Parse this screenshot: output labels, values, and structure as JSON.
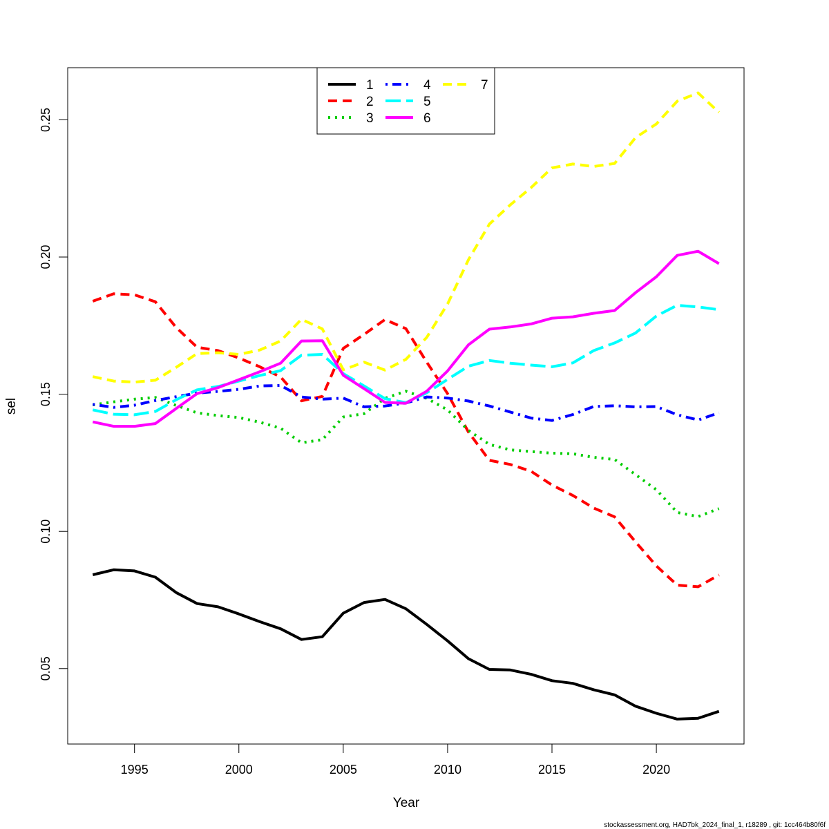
{
  "chart_data": {
    "type": "line",
    "title": "",
    "xlabel": "Year",
    "ylabel": "sel",
    "xlim": [
      1991.8,
      2024.2
    ],
    "ylim": [
      0.0225,
      0.269
    ],
    "xticks": [
      1995,
      2000,
      2005,
      2010,
      2015,
      2020
    ],
    "yticks": [
      0.05,
      0.1,
      0.15,
      0.2,
      0.25
    ],
    "ytick_labels": [
      "0.05",
      "0.10",
      "0.15",
      "0.20",
      "0.25"
    ],
    "grid": false,
    "legend_position": "top-center",
    "footer": "stockassessment.org, HAD7bk_2024_final_1, r18289 , git: 1cc464b80f6f",
    "x": [
      1993,
      1994,
      1995,
      1996,
      1997,
      1998,
      1999,
      2000,
      2001,
      2002,
      2003,
      2004,
      2005,
      2006,
      2007,
      2008,
      2009,
      2010,
      2011,
      2012,
      2013,
      2014,
      2015,
      2016,
      2017,
      2018,
      2019,
      2020,
      2021,
      2022,
      2023
    ],
    "series": [
      {
        "name": "1",
        "color": "#000000",
        "dash": "solid",
        "values": [
          0.0842,
          0.086,
          0.0856,
          0.0833,
          0.0777,
          0.0737,
          0.0725,
          0.0699,
          0.0671,
          0.0645,
          0.0606,
          0.0616,
          0.0702,
          0.0741,
          0.0752,
          0.0718,
          0.0661,
          0.0601,
          0.0536,
          0.0497,
          0.0495,
          0.0479,
          0.0456,
          0.0446,
          0.0423,
          0.0404,
          0.0363,
          0.0337,
          0.0316,
          0.0319,
          0.0344
        ]
      },
      {
        "name": "2",
        "color": "#ff0000",
        "dash": "dashed",
        "values": [
          0.1839,
          0.1866,
          0.1862,
          0.1837,
          0.1743,
          0.1671,
          0.1659,
          0.1632,
          0.16,
          0.1563,
          0.1476,
          0.1492,
          0.1667,
          0.1718,
          0.1772,
          0.1739,
          0.1617,
          0.1502,
          0.1362,
          0.1259,
          0.1244,
          0.1219,
          0.1169,
          0.1131,
          0.1085,
          0.1053,
          0.0962,
          0.0874,
          0.0804,
          0.0798,
          0.0841
        ]
      },
      {
        "name": "3",
        "color": "#00cd00",
        "dash": "dotted",
        "values": [
          0.1461,
          0.1472,
          0.1482,
          0.1488,
          0.1459,
          0.1432,
          0.1422,
          0.1415,
          0.1398,
          0.1376,
          0.1323,
          0.1334,
          0.1417,
          0.1429,
          0.1485,
          0.1511,
          0.1485,
          0.1443,
          0.1368,
          0.1317,
          0.1297,
          0.1291,
          0.1285,
          0.1283,
          0.127,
          0.1262,
          0.1207,
          0.1152,
          0.1069,
          0.1054,
          0.1083
        ]
      },
      {
        "name": "4",
        "color": "#0000ff",
        "dash": "dashdot",
        "values": [
          0.1463,
          0.1452,
          0.146,
          0.1477,
          0.1491,
          0.1504,
          0.151,
          0.1518,
          0.153,
          0.1532,
          0.149,
          0.1482,
          0.1486,
          0.1454,
          0.1457,
          0.1468,
          0.149,
          0.1486,
          0.1475,
          0.1457,
          0.1435,
          0.1413,
          0.1404,
          0.1426,
          0.1455,
          0.1458,
          0.1454,
          0.1455,
          0.1425,
          0.1406,
          0.1432
        ]
      },
      {
        "name": "5",
        "color": "#00ffff",
        "dash": "longdash",
        "values": [
          0.1443,
          0.1427,
          0.1425,
          0.1437,
          0.148,
          0.1516,
          0.1528,
          0.1548,
          0.1568,
          0.1586,
          0.1642,
          0.1645,
          0.1575,
          0.153,
          0.1484,
          0.1469,
          0.1505,
          0.1554,
          0.1602,
          0.1623,
          0.1613,
          0.1606,
          0.16,
          0.1614,
          0.1659,
          0.1687,
          0.1723,
          0.1785,
          0.1824,
          0.1818,
          0.1808
        ]
      },
      {
        "name": "6",
        "color": "#ff00ff",
        "dash": "solid",
        "values": [
          0.1399,
          0.1383,
          0.1383,
          0.1393,
          0.1448,
          0.1502,
          0.1524,
          0.1553,
          0.1582,
          0.1613,
          0.1694,
          0.1695,
          0.1569,
          0.152,
          0.147,
          0.1467,
          0.1511,
          0.1585,
          0.168,
          0.1737,
          0.1745,
          0.1756,
          0.1777,
          0.1782,
          0.1795,
          0.1805,
          0.187,
          0.1928,
          0.2006,
          0.2021,
          0.1976
        ]
      },
      {
        "name": "7",
        "color": "#ffff00",
        "dash": "dashed",
        "values": [
          0.1564,
          0.1548,
          0.1544,
          0.1551,
          0.1598,
          0.1648,
          0.1651,
          0.1645,
          0.1661,
          0.1694,
          0.1773,
          0.1738,
          0.1589,
          0.1617,
          0.1588,
          0.1627,
          0.1707,
          0.1829,
          0.199,
          0.212,
          0.219,
          0.2253,
          0.2325,
          0.2339,
          0.233,
          0.2341,
          0.2435,
          0.2485,
          0.2568,
          0.2598,
          0.2527
        ]
      }
    ]
  }
}
